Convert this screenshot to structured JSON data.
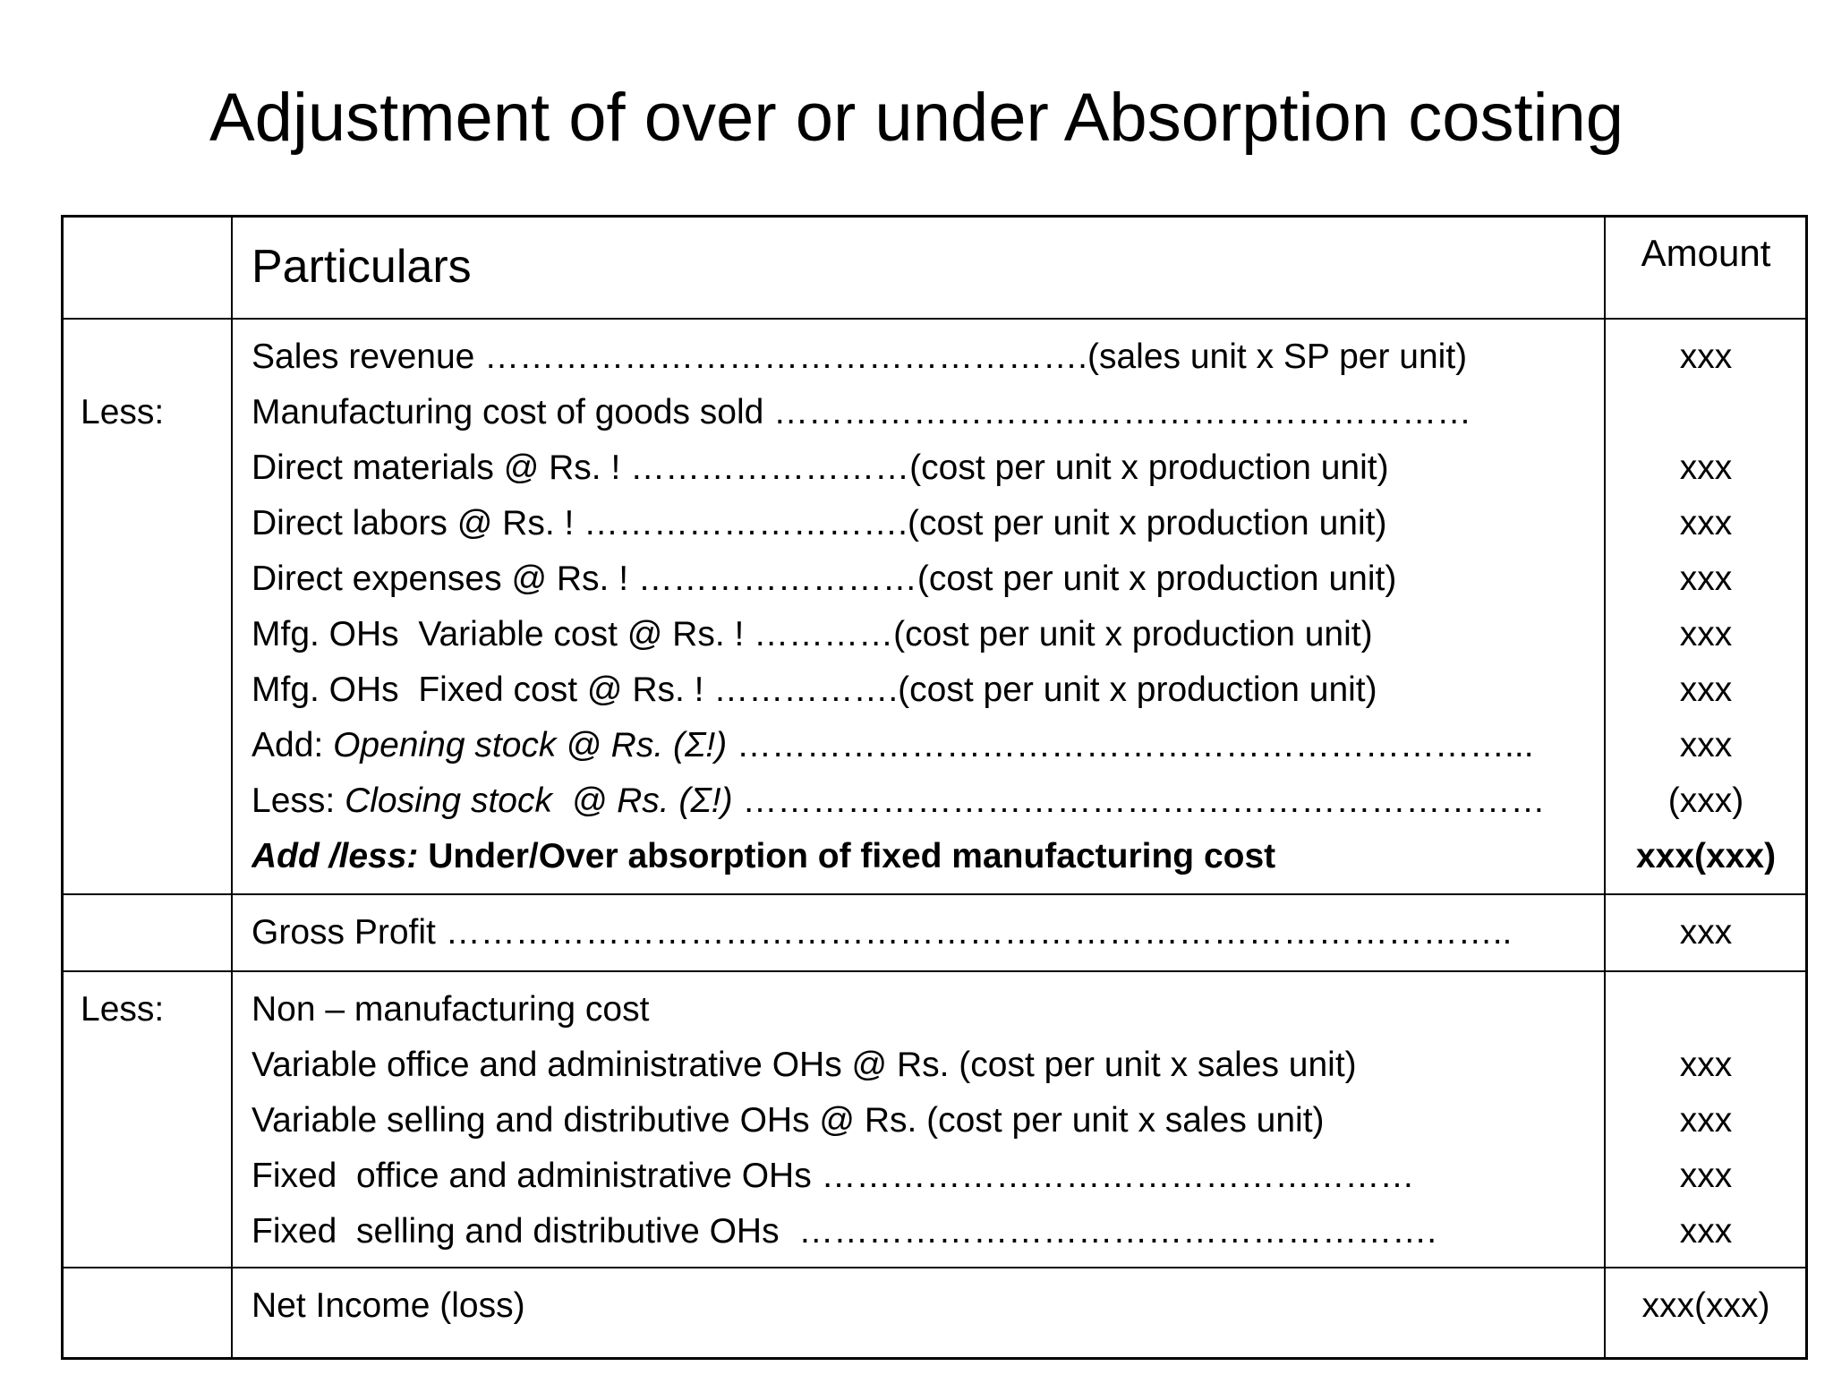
{
  "title": "Adjustment of over or under Absorption costing",
  "table": {
    "header": {
      "particulars": "Particulars",
      "amount": "Amount"
    },
    "sections": [
      {
        "lines": [
          {
            "parts": [
              {
                "text": "Sales revenue …………………………………………….(sales unit x SP per unit)"
              }
            ],
            "amount": "xxx"
          },
          {
            "label": "Less:",
            "parts": [
              {
                "text": "Manufacturing cost of goods sold ……………………………………………………"
              }
            ]
          },
          {
            "parts": [
              {
                "text": "Direct materials @ Rs. ! ……………………(cost per unit x production unit)"
              }
            ],
            "amount": "xxx"
          },
          {
            "parts": [
              {
                "text": "Direct labors @ Rs. ! ……………………….(cost per unit x production unit)"
              }
            ],
            "amount": "xxx"
          },
          {
            "parts": [
              {
                "text": "Direct expenses @ Rs. ! ……………………(cost per unit x production unit)"
              }
            ],
            "amount": "xxx"
          },
          {
            "parts": [
              {
                "text": "Mfg. OHs  Variable cost @ Rs. ! …………(cost per unit x production unit)"
              }
            ],
            "amount": "xxx"
          },
          {
            "parts": [
              {
                "text": "Mfg. OHs  Fixed cost @ Rs. ! …………….(cost per unit x production unit)"
              }
            ],
            "amount": "xxx"
          },
          {
            "parts": [
              {
                "text": "Add: "
              },
              {
                "text": "Opening stock @ Rs. (Σ!)",
                "style": "italic"
              },
              {
                "text": " …………………………………………………………..."
              }
            ],
            "amount": "xxx"
          },
          {
            "parts": [
              {
                "text": "Less: "
              },
              {
                "text": "Closing stock  @ Rs. (Σ!)",
                "style": "italic"
              },
              {
                "text": " ……………………………………………………………"
              }
            ],
            "amount": "(xxx)"
          },
          {
            "parts": [
              {
                "text": "Add /less:",
                "style": "bold-italic"
              },
              {
                "text": " Under/Over absorption of fixed manufacturing cost",
                "style": "bold"
              }
            ],
            "amount": "xxx(xxx)",
            "amount_style": "bold"
          }
        ]
      },
      {
        "lines": [
          {
            "parts": [
              {
                "text": "Gross Profit ……………………………………………………………………………….."
              }
            ],
            "amount": "xxx"
          }
        ]
      },
      {
        "lines": [
          {
            "label": "Less:",
            "parts": [
              {
                "text": "Non – manufacturing cost"
              }
            ]
          },
          {
            "parts": [
              {
                "text": "Variable office and administrative OHs @ Rs. (cost per unit x sales unit)"
              }
            ],
            "amount": "xxx"
          },
          {
            "parts": [
              {
                "text": "Variable selling and distributive OHs @ Rs. (cost per unit x sales unit)"
              }
            ],
            "amount": "xxx"
          },
          {
            "parts": [
              {
                "text": "Fixed  office and administrative OHs ……………………………………………"
              }
            ],
            "amount": "xxx"
          },
          {
            "parts": [
              {
                "text": "Fixed  selling and distributive OHs  ………………………………………………."
              }
            ],
            "amount": "xxx"
          }
        ]
      },
      {
        "lines": [
          {
            "parts": [
              {
                "text": "Net Income (loss)"
              }
            ],
            "amount": "xxx(xxx)"
          }
        ]
      }
    ]
  }
}
